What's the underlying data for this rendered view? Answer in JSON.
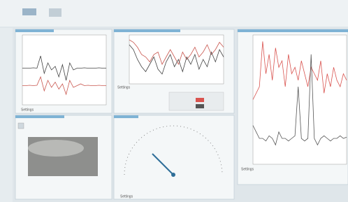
{
  "plots": [
    {
      "settings_label": "Settings",
      "ylim": [
        -1,
        1
      ],
      "series": [
        {
          "color": "#c9574f",
          "values": [
            -0.45,
            -0.45,
            -0.44,
            -0.45,
            -0.44,
            -0.2,
            -0.6,
            -0.3,
            -0.5,
            -0.35,
            -0.55,
            -0.4,
            -0.7,
            -0.3,
            -0.5,
            -0.45,
            -0.4,
            -0.45,
            -0.44,
            -0.45,
            -0.45,
            -0.44,
            -0.45,
            -0.45
          ]
        },
        {
          "color": "#444444",
          "values": [
            0.05,
            0.05,
            0.05,
            0.06,
            0.05,
            0.4,
            -0.1,
            0.2,
            0.0,
            0.1,
            -0.2,
            0.15,
            -0.3,
            0.2,
            0.0,
            0.05,
            0.05,
            0.06,
            0.05,
            0.05,
            0.05,
            0.06,
            0.05,
            0.05
          ]
        }
      ]
    },
    {
      "settings_label": "Settings",
      "ylim": [
        -1,
        1
      ],
      "series": [
        {
          "color": "#c9574f",
          "values": [
            0.8,
            0.7,
            0.5,
            0.2,
            0.1,
            -0.1,
            0.2,
            0.3,
            -0.2,
            0.1,
            0.4,
            0.1,
            -0.2,
            0.3,
            0.0,
            0.2,
            0.5,
            0.1,
            0.3,
            0.6,
            0.2,
            0.4,
            0.7,
            0.5
          ]
        },
        {
          "color": "#444444",
          "values": [
            0.6,
            0.4,
            0.0,
            -0.3,
            -0.5,
            -0.2,
            0.1,
            -0.4,
            -0.6,
            -0.1,
            0.2,
            -0.3,
            0.0,
            -0.5,
            0.1,
            -0.2,
            0.2,
            -0.4,
            0.0,
            -0.3,
            0.3,
            -0.1,
            0.4,
            0.1
          ]
        }
      ]
    },
    {
      "settings_label": "Settings",
      "ylim": [
        0,
        1
      ],
      "series": [
        {
          "color": "#d9534f",
          "values": [
            0.5,
            0.55,
            0.6,
            0.95,
            0.7,
            0.85,
            0.65,
            0.9,
            0.75,
            0.8,
            0.6,
            0.85,
            0.7,
            0.75,
            0.65,
            0.8,
            0.7,
            0.6,
            0.75,
            0.7,
            0.65,
            0.8,
            0.55,
            0.7,
            0.6,
            0.75,
            0.65,
            0.6,
            0.7,
            0.65
          ]
        },
        {
          "color": "#555555",
          "values": [
            0.3,
            0.25,
            0.2,
            0.2,
            0.18,
            0.22,
            0.2,
            0.15,
            0.25,
            0.2,
            0.2,
            0.18,
            0.2,
            0.22,
            0.6,
            0.2,
            0.18,
            0.2,
            0.85,
            0.2,
            0.15,
            0.2,
            0.22,
            0.2,
            0.18,
            0.2,
            0.2,
            0.22,
            0.2,
            0.21
          ]
        }
      ]
    }
  ],
  "gauge_settings_label": "Settings"
}
